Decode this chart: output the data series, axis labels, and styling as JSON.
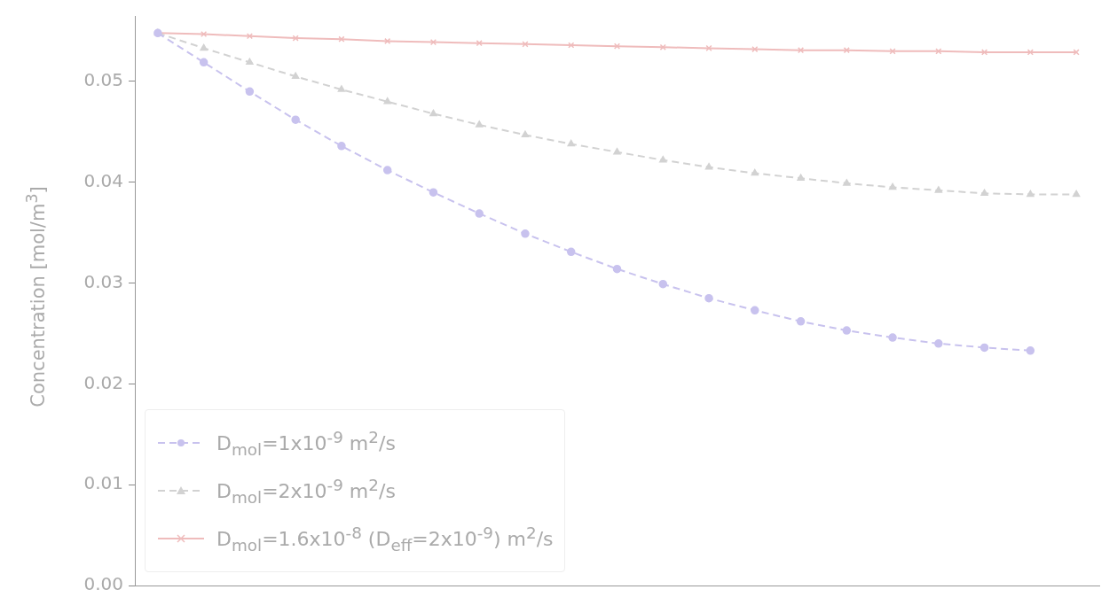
{
  "chart_data": {
    "type": "line",
    "ylabel": "Concentration [mol/m$^{3}$]",
    "categories": [
      null,
      null,
      null,
      null,
      null,
      null,
      null,
      null,
      null,
      null,
      null,
      null,
      null,
      null,
      null,
      null,
      null,
      null,
      null,
      null,
      null
    ],
    "series": [
      {
        "name": "D$_{mol}$=1x10$^{-9}$ m$^{2}$/s",
        "color": "#c8c2ee",
        "marker": "circle",
        "line_style": "dashed",
        "values": [
          0.0548,
          0.0519,
          0.049,
          0.0462,
          0.0436,
          0.0412,
          0.039,
          0.0369,
          0.0349,
          0.0331,
          0.0314,
          0.0299,
          0.0285,
          0.0273,
          0.0262,
          0.0253,
          0.0246,
          0.024,
          0.0236,
          0.0233,
          null
        ]
      },
      {
        "name": "D$_{mol}$=2x10$^{-9}$ m$^{2}$/s",
        "color": "#d2d2d2",
        "marker": "triangle",
        "line_style": "dashed",
        "values": [
          0.0548,
          0.0533,
          0.0519,
          0.0505,
          0.0492,
          0.048,
          0.0468,
          0.0457,
          0.0447,
          0.0438,
          0.043,
          0.0422,
          0.0415,
          0.0409,
          0.0404,
          0.0399,
          0.0395,
          0.0392,
          0.0389,
          0.0388,
          0.0388
        ]
      },
      {
        "name": "D$_{mol}$=1.6x10$^{-8}$ (D$_{eff}$=2x10$^{-9}$) m$^{2}$/s",
        "color": "#efbcbc",
        "marker": "cross",
        "line_style": "solid",
        "values": [
          0.0548,
          0.0547,
          0.0545,
          0.0543,
          0.0542,
          0.054,
          0.0539,
          0.0538,
          0.0537,
          0.0536,
          0.0535,
          0.0534,
          0.0533,
          0.0532,
          0.0531,
          0.0531,
          0.053,
          0.053,
          0.0529,
          0.0529,
          0.0529
        ]
      }
    ],
    "ylim": [
      0,
      0.0565
    ],
    "yticks": [
      {
        "value": 0,
        "label": "0.00"
      },
      0.01,
      0.02,
      0.03,
      0.04,
      0.05
    ],
    "grid": false,
    "legend": "bottom left"
  }
}
